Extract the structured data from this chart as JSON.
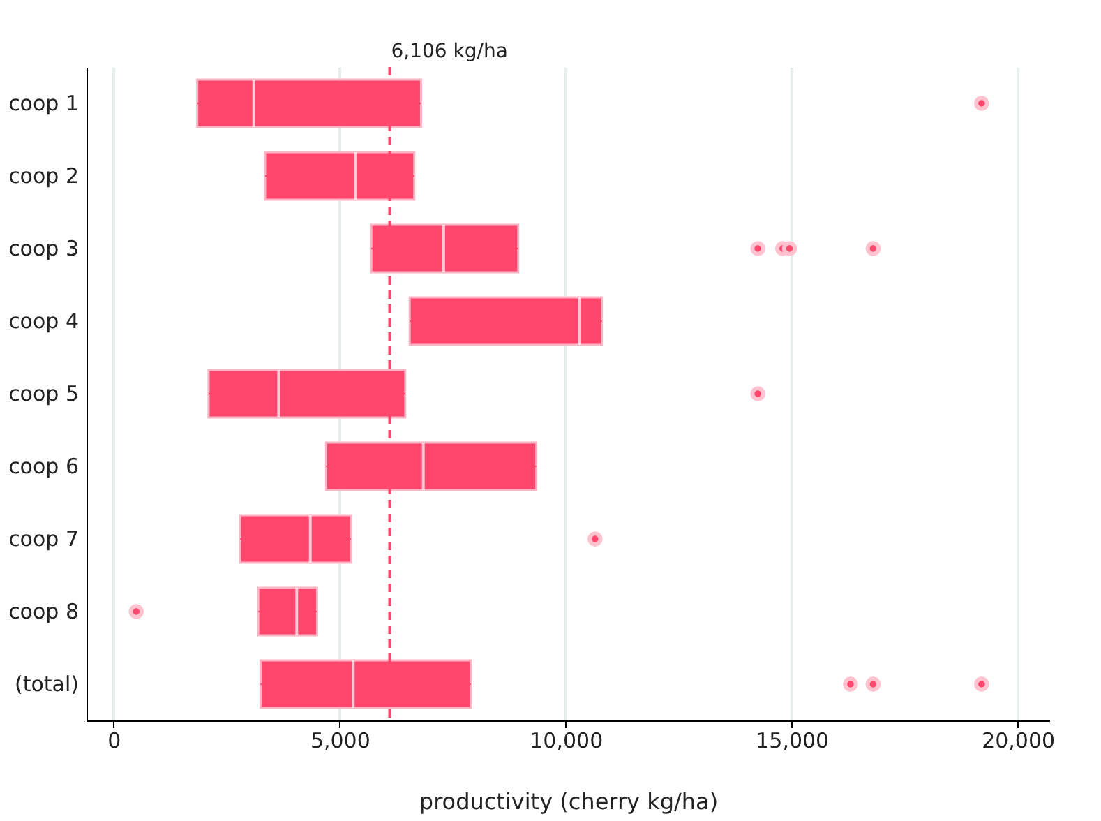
{
  "chart_data": {
    "type": "box",
    "orientation": "horizontal",
    "xlabel": "productivity (cherry kg/ha)",
    "categories": [
      "coop 1",
      "coop 2",
      "coop 3",
      "coop 4",
      "coop 5",
      "coop 6",
      "coop 7",
      "coop 8",
      "(total)"
    ],
    "series": [
      {
        "color": "#ff476e",
        "boxes": [
          {
            "low": 1850,
            "q1": 1850,
            "median": 3100,
            "q3": 6800,
            "high": 6800,
            "outliers": [
              19200
            ]
          },
          {
            "low": 3350,
            "q1": 3350,
            "median": 5350,
            "q3": 6650,
            "high": 6650
          },
          {
            "low": 5700,
            "q1": 5700,
            "median": 7300,
            "q3": 8950,
            "high": 8950,
            "outliers": [
              14250,
              14800,
              14950,
              16800
            ]
          },
          {
            "low": 6550,
            "q1": 6550,
            "median": 10300,
            "q3": 10800,
            "high": 10800
          },
          {
            "low": 2100,
            "q1": 2100,
            "median": 3650,
            "q3": 6450,
            "high": 6450,
            "outliers": [
              14250
            ]
          },
          {
            "low": 4700,
            "q1": 4700,
            "median": 6850,
            "q3": 9350,
            "high": 9350
          },
          {
            "low": 2800,
            "q1": 2800,
            "median": 4350,
            "q3": 5250,
            "high": 5250,
            "outliers": [
              10650
            ]
          },
          {
            "low": 3200,
            "q1": 3200,
            "median": 4050,
            "q3": 4500,
            "high": 4500,
            "outliers": [
              500
            ]
          },
          {
            "low": 3250,
            "q1": 3250,
            "median": 5300,
            "q3": 7900,
            "high": 7900,
            "outliers": [
              16300,
              16800,
              19200
            ]
          }
        ]
      }
    ],
    "xlim": [
      -600,
      20700
    ],
    "xticks": [
      0,
      {
        "value": 5000,
        "label": "5,000"
      },
      {
        "value": 10000,
        "label": "10,000"
      },
      {
        "value": 15000,
        "label": "15,000"
      },
      {
        "value": 20000,
        "label": "20,000"
      }
    ],
    "grid": "x",
    "ref_lines": [
      {
        "axis": "x",
        "value": 6106,
        "label": "6,106 kg/ha",
        "color": "#ff476e",
        "line_style": "dashed"
      }
    ]
  }
}
